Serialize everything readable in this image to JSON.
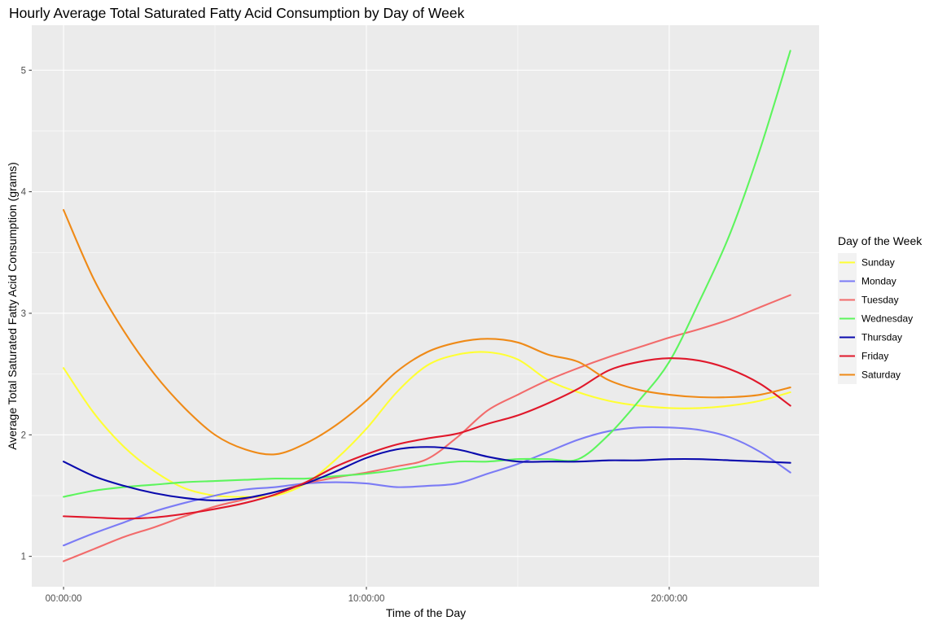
{
  "chart_data": {
    "type": "line",
    "title": "Hourly Average Total Saturated Fatty Acid Consumption by Day of Week",
    "xlabel": "Time of the Day",
    "ylabel": "Average Total Saturated Fatty Acid Consumption (grams)",
    "x_unit": "hours",
    "xlim": [
      -1.05,
      24.95
    ],
    "ylim": [
      0.75,
      5.37
    ],
    "x_ticks": [
      {
        "value": 0,
        "label": "00:00:00"
      },
      {
        "value": 10,
        "label": "10:00:00"
      },
      {
        "value": 20,
        "label": "20:00:00"
      }
    ],
    "x_minor_ticks": [
      5,
      15
    ],
    "y_ticks": [
      {
        "value": 1,
        "label": "1"
      },
      {
        "value": 2,
        "label": "2"
      },
      {
        "value": 3,
        "label": "3"
      },
      {
        "value": 4,
        "label": "4"
      },
      {
        "value": 5,
        "label": "5"
      }
    ],
    "y_minor_ticks": [
      1.5,
      2.5,
      3.5,
      4.5
    ],
    "grid": true,
    "legend": {
      "title": "Day of the Week",
      "position": "right"
    },
    "x": [
      0,
      1,
      2,
      3,
      4,
      5,
      6,
      7,
      8,
      9,
      10,
      11,
      12,
      13,
      14,
      15,
      16,
      17,
      18,
      19,
      20,
      21,
      22,
      23,
      24
    ],
    "series": [
      {
        "name": "Sunday",
        "color": "#ffff33",
        "values": [
          2.55,
          2.18,
          1.9,
          1.7,
          1.56,
          1.5,
          1.49,
          1.5,
          1.6,
          1.8,
          2.05,
          2.35,
          2.57,
          2.66,
          2.68,
          2.62,
          2.45,
          2.35,
          2.28,
          2.24,
          2.22,
          2.22,
          2.24,
          2.28,
          2.35
        ]
      },
      {
        "name": "Monday",
        "color": "#7b7bf5",
        "values": [
          1.09,
          1.19,
          1.28,
          1.37,
          1.44,
          1.5,
          1.55,
          1.57,
          1.6,
          1.61,
          1.6,
          1.57,
          1.58,
          1.6,
          1.68,
          1.76,
          1.86,
          1.96,
          2.03,
          2.06,
          2.06,
          2.04,
          1.98,
          1.86,
          1.69
        ]
      },
      {
        "name": "Tuesday",
        "color": "#f26b6b",
        "values": [
          0.96,
          1.06,
          1.16,
          1.24,
          1.33,
          1.41,
          1.47,
          1.53,
          1.6,
          1.65,
          1.69,
          1.74,
          1.8,
          1.98,
          2.2,
          2.33,
          2.45,
          2.55,
          2.64,
          2.72,
          2.8,
          2.87,
          2.95,
          3.05,
          3.15
        ]
      },
      {
        "name": "Wednesday",
        "color": "#5df55d",
        "values": [
          1.49,
          1.54,
          1.57,
          1.59,
          1.61,
          1.62,
          1.63,
          1.64,
          1.64,
          1.66,
          1.68,
          1.71,
          1.75,
          1.78,
          1.78,
          1.8,
          1.8,
          1.8,
          2.0,
          2.28,
          2.6,
          3.1,
          3.65,
          4.35,
          5.16
        ]
      },
      {
        "name": "Thursday",
        "color": "#0a0aad",
        "values": [
          1.78,
          1.66,
          1.58,
          1.52,
          1.48,
          1.46,
          1.48,
          1.53,
          1.6,
          1.7,
          1.81,
          1.88,
          1.9,
          1.88,
          1.82,
          1.78,
          1.78,
          1.78,
          1.79,
          1.79,
          1.8,
          1.8,
          1.79,
          1.78,
          1.77
        ]
      },
      {
        "name": "Friday",
        "color": "#e0182b",
        "values": [
          1.33,
          1.32,
          1.31,
          1.32,
          1.35,
          1.39,
          1.44,
          1.51,
          1.61,
          1.74,
          1.84,
          1.92,
          1.97,
          2.01,
          2.09,
          2.16,
          2.26,
          2.38,
          2.53,
          2.6,
          2.63,
          2.61,
          2.54,
          2.42,
          2.24
        ]
      },
      {
        "name": "Saturday",
        "color": "#ef8a17",
        "values": [
          3.85,
          3.28,
          2.85,
          2.5,
          2.22,
          2.0,
          1.88,
          1.84,
          1.93,
          2.08,
          2.28,
          2.52,
          2.68,
          2.76,
          2.79,
          2.76,
          2.66,
          2.6,
          2.45,
          2.37,
          2.33,
          2.31,
          2.31,
          2.33,
          2.39
        ]
      }
    ]
  }
}
